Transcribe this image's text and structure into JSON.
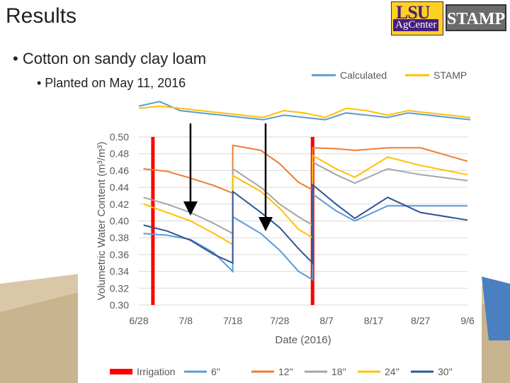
{
  "slide": {
    "title": "Results",
    "bullet1": "• Cotton on sandy clay loam",
    "bullet2": "• Planted on May 11, 2016",
    "logos": {
      "lsu_text": "LSU",
      "agcenter_text": "AgCenter",
      "stamp_text": "STAMP"
    }
  },
  "chart_data": [
    {
      "type": "line",
      "title": "",
      "series": [
        {
          "name": "Calculated",
          "color": "#5b9bd5",
          "values": [
            0.45,
            0.47,
            0.43,
            0.42,
            0.41,
            0.4,
            0.39,
            0.41,
            0.4,
            0.39,
            0.42,
            0.41,
            0.4,
            0.42,
            0.41,
            0.4,
            0.39
          ]
        },
        {
          "name": "STAMP",
          "color": "#ffc000",
          "values": [
            0.44,
            0.45,
            0.44,
            0.43,
            0.42,
            0.41,
            0.4,
            0.43,
            0.42,
            0.4,
            0.44,
            0.43,
            0.41,
            0.43,
            0.42,
            0.41,
            0.4
          ]
        }
      ],
      "legend_position": "top-right"
    },
    {
      "type": "line",
      "xlabel": "Date (2016)",
      "ylabel": "Volumetric Water Content (m³/m³)",
      "ylim": [
        0.3,
        0.5
      ],
      "xlim": [
        "2016-06-28",
        "2016-09-06"
      ],
      "ytick_labels": [
        "0.50",
        "0.48",
        "0.46",
        "0.44",
        "0.42",
        "0.40",
        "0.38",
        "0.36",
        "0.34",
        "0.32",
        "0.30"
      ],
      "xtick_labels": [
        "6/28",
        "7/8",
        "7/18",
        "7/28",
        "8/7",
        "8/17",
        "8/27",
        "9/6"
      ],
      "irrigation": {
        "name": "Irrigation",
        "color": "#ff0000",
        "dates": [
          "2016-07-01",
          "2016-08-04"
        ]
      },
      "arrows": [
        "2016-07-09",
        "2016-07-25"
      ],
      "series": [
        {
          "name": "6\"",
          "color": "#5b9bd5",
          "points": [
            [
              "2016-06-29",
              0.385
            ],
            [
              "2016-07-04",
              0.383
            ],
            [
              "2016-07-09",
              0.378
            ],
            [
              "2016-07-14",
              0.362
            ],
            [
              "2016-07-18",
              0.34
            ],
            [
              "2016-07-18",
              0.405
            ],
            [
              "2016-07-24",
              0.385
            ],
            [
              "2016-07-28",
              0.365
            ],
            [
              "2016-08-01",
              0.34
            ],
            [
              "2016-08-04",
              0.33
            ],
            [
              "2016-08-04",
              0.432
            ],
            [
              "2016-08-09",
              0.412
            ],
            [
              "2016-08-13",
              0.4
            ],
            [
              "2016-08-20",
              0.418
            ],
            [
              "2016-08-27",
              0.418
            ],
            [
              "2016-09-06",
              0.418
            ]
          ]
        },
        {
          "name": "12\"",
          "color": "#ed7d31",
          "points": [
            [
              "2016-06-29",
              0.462
            ],
            [
              "2016-07-04",
              0.459
            ],
            [
              "2016-07-09",
              0.451
            ],
            [
              "2016-07-14",
              0.442
            ],
            [
              "2016-07-18",
              0.433
            ],
            [
              "2016-07-18",
              0.49
            ],
            [
              "2016-07-24",
              0.484
            ],
            [
              "2016-07-28",
              0.468
            ],
            [
              "2016-08-01",
              0.446
            ],
            [
              "2016-08-04",
              0.437
            ],
            [
              "2016-08-04",
              0.487
            ],
            [
              "2016-08-09",
              0.486
            ],
            [
              "2016-08-13",
              0.484
            ],
            [
              "2016-08-20",
              0.487
            ],
            [
              "2016-08-27",
              0.487
            ],
            [
              "2016-09-06",
              0.471
            ]
          ]
        },
        {
          "name": "18\"",
          "color": "#a5a5a5",
          "points": [
            [
              "2016-06-29",
              0.428
            ],
            [
              "2016-07-04",
              0.42
            ],
            [
              "2016-07-09",
              0.41
            ],
            [
              "2016-07-14",
              0.397
            ],
            [
              "2016-07-18",
              0.385
            ],
            [
              "2016-07-18",
              0.462
            ],
            [
              "2016-07-24",
              0.44
            ],
            [
              "2016-07-28",
              0.42
            ],
            [
              "2016-08-01",
              0.405
            ],
            [
              "2016-08-04",
              0.395
            ],
            [
              "2016-08-04",
              0.47
            ],
            [
              "2016-08-09",
              0.455
            ],
            [
              "2016-08-13",
              0.445
            ],
            [
              "2016-08-20",
              0.462
            ],
            [
              "2016-08-27",
              0.455
            ],
            [
              "2016-09-06",
              0.448
            ]
          ]
        },
        {
          "name": "24\"",
          "color": "#ffc000",
          "points": [
            [
              "2016-06-29",
              0.42
            ],
            [
              "2016-07-04",
              0.41
            ],
            [
              "2016-07-09",
              0.4
            ],
            [
              "2016-07-14",
              0.385
            ],
            [
              "2016-07-18",
              0.372
            ],
            [
              "2016-07-18",
              0.454
            ],
            [
              "2016-07-24",
              0.435
            ],
            [
              "2016-07-28",
              0.415
            ],
            [
              "2016-08-01",
              0.39
            ],
            [
              "2016-08-04",
              0.38
            ],
            [
              "2016-08-04",
              0.478
            ],
            [
              "2016-08-09",
              0.462
            ],
            [
              "2016-08-13",
              0.452
            ],
            [
              "2016-08-20",
              0.476
            ],
            [
              "2016-08-27",
              0.466
            ],
            [
              "2016-09-06",
              0.455
            ]
          ]
        },
        {
          "name": "30\"",
          "color": "#2e5597",
          "points": [
            [
              "2016-06-29",
              0.395
            ],
            [
              "2016-07-04",
              0.388
            ],
            [
              "2016-07-09",
              0.377
            ],
            [
              "2016-07-14",
              0.36
            ],
            [
              "2016-07-18",
              0.35
            ],
            [
              "2016-07-18",
              0.435
            ],
            [
              "2016-07-24",
              0.41
            ],
            [
              "2016-07-28",
              0.392
            ],
            [
              "2016-08-01",
              0.367
            ],
            [
              "2016-08-04",
              0.35
            ],
            [
              "2016-08-04",
              0.443
            ],
            [
              "2016-08-09",
              0.42
            ],
            [
              "2016-08-13",
              0.403
            ],
            [
              "2016-08-20",
              0.428
            ],
            [
              "2016-08-27",
              0.41
            ],
            [
              "2016-09-06",
              0.401
            ]
          ]
        }
      ],
      "legend_position": "bottom"
    }
  ]
}
